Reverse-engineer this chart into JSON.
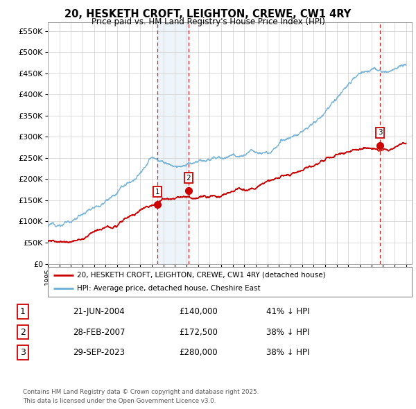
{
  "title": "20, HESKETH CROFT, LEIGHTON, CREWE, CW1 4RY",
  "subtitle": "Price paid vs. HM Land Registry's House Price Index (HPI)",
  "ytick_values": [
    0,
    50000,
    100000,
    150000,
    200000,
    250000,
    300000,
    350000,
    400000,
    450000,
    500000,
    550000
  ],
  "ylim": [
    0,
    570000
  ],
  "xlim_start": 1995.0,
  "xlim_end": 2026.5,
  "hpi_color": "#6baed6",
  "price_color": "#cc0000",
  "dashed_color": "#cc0000",
  "sale1_date": 2004.47,
  "sale1_price": 140000,
  "sale1_label": "1",
  "sale2_date": 2007.16,
  "sale2_price": 172500,
  "sale2_label": "2",
  "sale3_date": 2023.75,
  "sale3_price": 280000,
  "sale3_label": "3",
  "legend_line1": "20, HESKETH CROFT, LEIGHTON, CREWE, CW1 4RY (detached house)",
  "legend_line2": "HPI: Average price, detached house, Cheshire East",
  "table_rows": [
    [
      "1",
      "21-JUN-2004",
      "£140,000",
      "41% ↓ HPI"
    ],
    [
      "2",
      "28-FEB-2007",
      "£172,500",
      "38% ↓ HPI"
    ],
    [
      "3",
      "29-SEP-2023",
      "£280,000",
      "38% ↓ HPI"
    ]
  ],
  "footnote": "Contains HM Land Registry data © Crown copyright and database right 2025.\nThis data is licensed under the Open Government Licence v3.0.",
  "background_color": "#ffffff",
  "plot_bg_color": "#ffffff",
  "grid_color": "#cccccc",
  "hpi_keypoints_t": [
    0.0,
    0.03,
    0.06,
    0.1,
    0.14,
    0.19,
    0.25,
    0.29,
    0.32,
    0.36,
    0.42,
    0.48,
    0.52,
    0.58,
    0.62,
    0.67,
    0.72,
    0.77,
    0.82,
    0.87,
    0.91,
    0.95,
    1.0
  ],
  "hpi_keypoints_v": [
    88000,
    92000,
    100000,
    120000,
    150000,
    175000,
    215000,
    260000,
    250000,
    240000,
    245000,
    255000,
    265000,
    280000,
    295000,
    315000,
    340000,
    375000,
    415000,
    460000,
    470000,
    455000,
    470000
  ],
  "price_keypoints_t": [
    0.0,
    0.03,
    0.06,
    0.1,
    0.14,
    0.19,
    0.25,
    0.29,
    0.32,
    0.36,
    0.42,
    0.48,
    0.52,
    0.58,
    0.62,
    0.67,
    0.72,
    0.77,
    0.82,
    0.87,
    0.91,
    0.95,
    1.0
  ],
  "price_keypoints_v": [
    52000,
    55000,
    60000,
    70000,
    85000,
    100000,
    125000,
    148000,
    162000,
    160000,
    158000,
    162000,
    168000,
    175000,
    185000,
    200000,
    218000,
    238000,
    258000,
    270000,
    275000,
    278000,
    285000
  ]
}
